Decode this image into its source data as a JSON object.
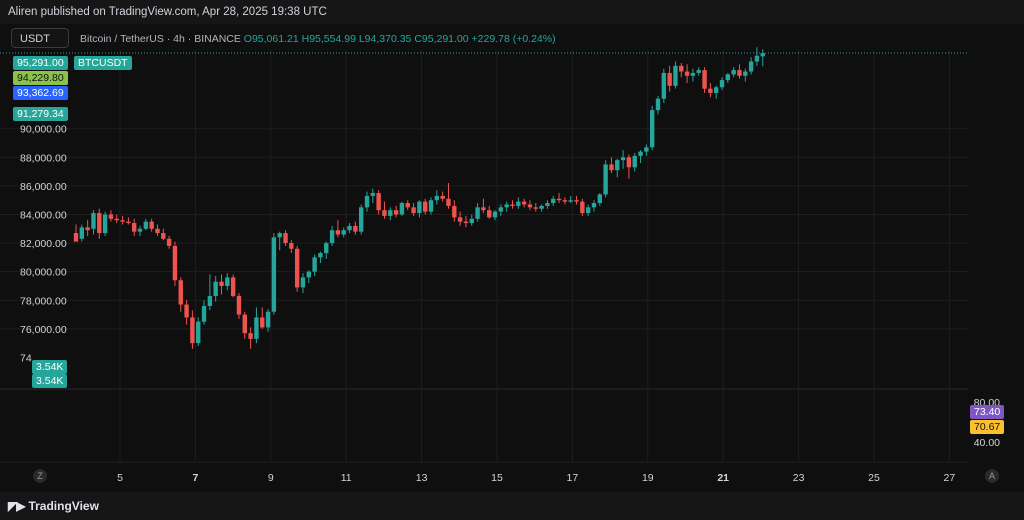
{
  "header": {
    "published_by": "Aliren published on TradingView.com, Apr 28, 2025 19:38 UTC"
  },
  "symbol_box": "USDT",
  "legend": {
    "title": "Bitcoin / TetherUS · 4h · BINANCE",
    "open": "O95,061.21",
    "high": "H95,554.99",
    "low": "L94,370.35",
    "close": "C95,291.00",
    "change": "+229.78 (+0.24%)"
  },
  "badges": {
    "price_current": "95,291.00",
    "price_current_tag": "BTCUSDT",
    "price_b": "94,229.80",
    "price_c": "93,362.69",
    "price_d": "91,279.34",
    "volume_a": "3.54K",
    "volume_b": "3.54K",
    "rsi_a": "73.40",
    "rsi_b": "70.67"
  },
  "colors": {
    "up": "#26a69a",
    "down": "#ef5350",
    "badge_green": "#26a69a",
    "badge_lime": "#8bc34a",
    "badge_blue": "#2962ff",
    "badge_purple": "#7e57c2",
    "badge_yellow": "#fbc02d",
    "grid": "#1e1e1e",
    "axis_text": "#d1d4dc"
  },
  "footer": {
    "brand": "TradingView",
    "zoom_left": "Z",
    "auto_right": "A"
  },
  "chart_data": {
    "type": "candlestick",
    "title": "",
    "price_axis_ticks": [
      "90,000.00",
      "88,000.00",
      "86,000.00",
      "84,000.00",
      "82,000.00",
      "80,000.00",
      "78,000.00",
      "76,000.00",
      "74"
    ],
    "price_axis_values": [
      90000,
      88000,
      86000,
      84000,
      82000,
      80000,
      78000,
      76000,
      74000
    ],
    "ylim": [
      74000,
      97500
    ],
    "rsi_axis_ticks": [
      "80.00",
      "40.00"
    ],
    "rsi_axis_values": [
      80,
      40
    ],
    "x_ticks": [
      "5",
      "7",
      "9",
      "11",
      "13",
      "15",
      "17",
      "19",
      "21",
      "23",
      "25",
      "27"
    ],
    "x_tick_days": [
      5,
      7,
      9,
      11,
      13,
      15,
      17,
      19,
      21,
      23,
      25,
      27
    ],
    "x_tick_bold": [
      "7",
      "21"
    ],
    "last_close": 95291.0,
    "candles": [
      {
        "o": 82700,
        "h": 83300,
        "l": 82200,
        "c": 82100
      },
      {
        "o": 82300,
        "h": 83300,
        "l": 82100,
        "c": 83100
      },
      {
        "o": 83100,
        "h": 83600,
        "l": 82500,
        "c": 82900
      },
      {
        "o": 83000,
        "h": 84300,
        "l": 82600,
        "c": 84100
      },
      {
        "o": 84100,
        "h": 84400,
        "l": 82300,
        "c": 82700
      },
      {
        "o": 82700,
        "h": 84200,
        "l": 82500,
        "c": 84000
      },
      {
        "o": 84000,
        "h": 84300,
        "l": 83500,
        "c": 83700
      },
      {
        "o": 83700,
        "h": 84000,
        "l": 83400,
        "c": 83600
      },
      {
        "o": 83600,
        "h": 83900,
        "l": 83300,
        "c": 83500
      },
      {
        "o": 83500,
        "h": 83800,
        "l": 83300,
        "c": 83400
      },
      {
        "o": 83400,
        "h": 83700,
        "l": 82500,
        "c": 82800
      },
      {
        "o": 82800,
        "h": 83200,
        "l": 82500,
        "c": 83000
      },
      {
        "o": 83000,
        "h": 83700,
        "l": 82900,
        "c": 83500
      },
      {
        "o": 83500,
        "h": 83700,
        "l": 82800,
        "c": 83000
      },
      {
        "o": 83000,
        "h": 83300,
        "l": 82500,
        "c": 82700
      },
      {
        "o": 82700,
        "h": 83000,
        "l": 82200,
        "c": 82300
      },
      {
        "o": 82300,
        "h": 82500,
        "l": 81600,
        "c": 81800
      },
      {
        "o": 81800,
        "h": 82100,
        "l": 79000,
        "c": 79400
      },
      {
        "o": 79400,
        "h": 79600,
        "l": 77200,
        "c": 77700
      },
      {
        "o": 77700,
        "h": 78000,
        "l": 76300,
        "c": 76800
      },
      {
        "o": 76800,
        "h": 77300,
        "l": 74600,
        "c": 75000
      },
      {
        "o": 75000,
        "h": 76800,
        "l": 74800,
        "c": 76500
      },
      {
        "o": 76500,
        "h": 78000,
        "l": 76300,
        "c": 77600
      },
      {
        "o": 77600,
        "h": 79800,
        "l": 77300,
        "c": 78300
      },
      {
        "o": 78300,
        "h": 79700,
        "l": 77900,
        "c": 79300
      },
      {
        "o": 79300,
        "h": 79800,
        "l": 78400,
        "c": 79000
      },
      {
        "o": 79000,
        "h": 79900,
        "l": 78700,
        "c": 79600
      },
      {
        "o": 79600,
        "h": 79800,
        "l": 78200,
        "c": 78300
      },
      {
        "o": 78300,
        "h": 78500,
        "l": 76700,
        "c": 77000
      },
      {
        "o": 77000,
        "h": 77200,
        "l": 75300,
        "c": 75700
      },
      {
        "o": 75700,
        "h": 76100,
        "l": 74600,
        "c": 75300
      },
      {
        "o": 75300,
        "h": 77500,
        "l": 75000,
        "c": 76800
      },
      {
        "o": 76800,
        "h": 77500,
        "l": 76000,
        "c": 76100
      },
      {
        "o": 76100,
        "h": 77400,
        "l": 75800,
        "c": 77200
      },
      {
        "o": 77200,
        "h": 82700,
        "l": 77000,
        "c": 82400
      },
      {
        "o": 82400,
        "h": 82800,
        "l": 81500,
        "c": 82700
      },
      {
        "o": 82700,
        "h": 82900,
        "l": 81800,
        "c": 82000
      },
      {
        "o": 82000,
        "h": 82200,
        "l": 81300,
        "c": 81600
      },
      {
        "o": 81600,
        "h": 81800,
        "l": 78600,
        "c": 78900
      },
      {
        "o": 78900,
        "h": 79900,
        "l": 78500,
        "c": 79600
      },
      {
        "o": 79600,
        "h": 80100,
        "l": 79200,
        "c": 80000
      },
      {
        "o": 80000,
        "h": 81200,
        "l": 79700,
        "c": 81000
      },
      {
        "o": 81000,
        "h": 81400,
        "l": 80600,
        "c": 81300
      },
      {
        "o": 81300,
        "h": 82100,
        "l": 80900,
        "c": 82000
      },
      {
        "o": 82000,
        "h": 83200,
        "l": 81800,
        "c": 82900
      },
      {
        "o": 82900,
        "h": 83600,
        "l": 82400,
        "c": 82600
      },
      {
        "o": 82600,
        "h": 83100,
        "l": 82400,
        "c": 82900
      },
      {
        "o": 82900,
        "h": 83400,
        "l": 82700,
        "c": 83200
      },
      {
        "o": 83200,
        "h": 83500,
        "l": 82600,
        "c": 82800
      },
      {
        "o": 82800,
        "h": 84700,
        "l": 82600,
        "c": 84500
      },
      {
        "o": 84500,
        "h": 85600,
        "l": 84200,
        "c": 85300
      },
      {
        "o": 85300,
        "h": 85800,
        "l": 84800,
        "c": 85500
      },
      {
        "o": 85500,
        "h": 85700,
        "l": 84000,
        "c": 84300
      },
      {
        "o": 84300,
        "h": 84900,
        "l": 83700,
        "c": 83900
      },
      {
        "o": 83900,
        "h": 84500,
        "l": 83600,
        "c": 84300
      },
      {
        "o": 84300,
        "h": 84600,
        "l": 83800,
        "c": 84000
      },
      {
        "o": 84000,
        "h": 84900,
        "l": 83900,
        "c": 84800
      },
      {
        "o": 84800,
        "h": 85000,
        "l": 84300,
        "c": 84500
      },
      {
        "o": 84500,
        "h": 84800,
        "l": 83900,
        "c": 84100
      },
      {
        "o": 84100,
        "h": 85000,
        "l": 83800,
        "c": 84900
      },
      {
        "o": 84900,
        "h": 85100,
        "l": 84000,
        "c": 84200
      },
      {
        "o": 84200,
        "h": 85200,
        "l": 84000,
        "c": 85000
      },
      {
        "o": 85000,
        "h": 85700,
        "l": 84700,
        "c": 85300
      },
      {
        "o": 85300,
        "h": 85600,
        "l": 84900,
        "c": 85100
      },
      {
        "o": 85100,
        "h": 86200,
        "l": 84400,
        "c": 84600
      },
      {
        "o": 84600,
        "h": 85000,
        "l": 83500,
        "c": 83800
      },
      {
        "o": 83800,
        "h": 84200,
        "l": 83200,
        "c": 83500
      },
      {
        "o": 83500,
        "h": 83900,
        "l": 83100,
        "c": 83400
      },
      {
        "o": 83400,
        "h": 84000,
        "l": 83200,
        "c": 83700
      },
      {
        "o": 83700,
        "h": 84800,
        "l": 83500,
        "c": 84500
      },
      {
        "o": 84500,
        "h": 85100,
        "l": 84100,
        "c": 84300
      },
      {
        "o": 84300,
        "h": 84600,
        "l": 83700,
        "c": 83800
      },
      {
        "o": 83800,
        "h": 84300,
        "l": 83600,
        "c": 84200
      },
      {
        "o": 84200,
        "h": 84700,
        "l": 83900,
        "c": 84500
      },
      {
        "o": 84500,
        "h": 84900,
        "l": 84200,
        "c": 84700
      },
      {
        "o": 84700,
        "h": 85000,
        "l": 84400,
        "c": 84600
      },
      {
        "o": 84600,
        "h": 85200,
        "l": 84400,
        "c": 84900
      },
      {
        "o": 84900,
        "h": 85100,
        "l": 84500,
        "c": 84700
      },
      {
        "o": 84700,
        "h": 85000,
        "l": 84300,
        "c": 84500
      },
      {
        "o": 84500,
        "h": 84800,
        "l": 84200,
        "c": 84400
      },
      {
        "o": 84400,
        "h": 84700,
        "l": 84200,
        "c": 84600
      },
      {
        "o": 84600,
        "h": 85000,
        "l": 84400,
        "c": 84800
      },
      {
        "o": 84800,
        "h": 85300,
        "l": 84600,
        "c": 85100
      },
      {
        "o": 85100,
        "h": 85500,
        "l": 84800,
        "c": 85000
      },
      {
        "o": 85000,
        "h": 85200,
        "l": 84700,
        "c": 84900
      },
      {
        "o": 84900,
        "h": 85300,
        "l": 84800,
        "c": 85000
      },
      {
        "o": 85000,
        "h": 85300,
        "l": 84700,
        "c": 84900
      },
      {
        "o": 84900,
        "h": 85100,
        "l": 83900,
        "c": 84100
      },
      {
        "o": 84100,
        "h": 84700,
        "l": 83900,
        "c": 84500
      },
      {
        "o": 84500,
        "h": 85000,
        "l": 84200,
        "c": 84800
      },
      {
        "o": 84800,
        "h": 85500,
        "l": 84600,
        "c": 85400
      },
      {
        "o": 85400,
        "h": 87800,
        "l": 85200,
        "c": 87500
      },
      {
        "o": 87500,
        "h": 88000,
        "l": 86900,
        "c": 87100
      },
      {
        "o": 87100,
        "h": 87900,
        "l": 86600,
        "c": 87800
      },
      {
        "o": 87800,
        "h": 88500,
        "l": 87200,
        "c": 88000
      },
      {
        "o": 88000,
        "h": 88200,
        "l": 86500,
        "c": 87300
      },
      {
        "o": 87300,
        "h": 88300,
        "l": 87000,
        "c": 88100
      },
      {
        "o": 88100,
        "h": 88500,
        "l": 87600,
        "c": 88400
      },
      {
        "o": 88400,
        "h": 88900,
        "l": 88100,
        "c": 88700
      },
      {
        "o": 88700,
        "h": 91600,
        "l": 88500,
        "c": 91300
      },
      {
        "o": 91300,
        "h": 92300,
        "l": 91000,
        "c": 92100
      },
      {
        "o": 92100,
        "h": 94200,
        "l": 91800,
        "c": 93900
      },
      {
        "o": 93900,
        "h": 94400,
        "l": 92600,
        "c": 93000
      },
      {
        "o": 93000,
        "h": 94700,
        "l": 92800,
        "c": 94400
      },
      {
        "o": 94400,
        "h": 94600,
        "l": 93600,
        "c": 94000
      },
      {
        "o": 94000,
        "h": 94500,
        "l": 93200,
        "c": 93700
      },
      {
        "o": 93700,
        "h": 94200,
        "l": 93300,
        "c": 93900
      },
      {
        "o": 93900,
        "h": 94300,
        "l": 93700,
        "c": 94100
      },
      {
        "o": 94100,
        "h": 94300,
        "l": 92500,
        "c": 92800
      },
      {
        "o": 92800,
        "h": 93200,
        "l": 92200,
        "c": 92500
      },
      {
        "o": 92500,
        "h": 93000,
        "l": 92100,
        "c": 92900
      },
      {
        "o": 92900,
        "h": 93600,
        "l": 92700,
        "c": 93400
      },
      {
        "o": 93400,
        "h": 93900,
        "l": 93200,
        "c": 93800
      },
      {
        "o": 93800,
        "h": 94300,
        "l": 93600,
        "c": 94100
      },
      {
        "o": 94100,
        "h": 94500,
        "l": 93500,
        "c": 93700
      },
      {
        "o": 93700,
        "h": 94200,
        "l": 93300,
        "c": 94000
      },
      {
        "o": 94000,
        "h": 95000,
        "l": 93800,
        "c": 94700
      },
      {
        "o": 94700,
        "h": 95700,
        "l": 94400,
        "c": 95100
      },
      {
        "o": 95061.21,
        "h": 95554.99,
        "l": 94370.35,
        "c": 95291.0
      }
    ]
  }
}
